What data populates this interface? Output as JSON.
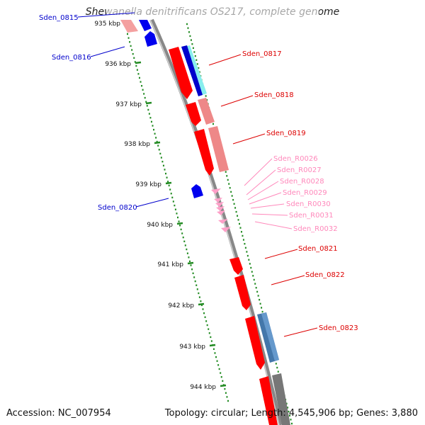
{
  "title": "Shewanella denitrificans OS217, complete genome",
  "footer": {
    "accession": "Accession: NC_007954",
    "summary": "Topology: circular; Length: 4,545,906 bp; Genes: 3,880"
  },
  "colors": {
    "forward_cds": "#ff0000",
    "forward_rna": "#ff9fc8",
    "reverse_cds": "#0000ee",
    "reverse_label": "#0000cc",
    "forward_label": "#dd0000",
    "rna_label": "#ff88bb",
    "cog_cyan": "#33dddd",
    "cog_steel": "#4477aa",
    "cog_gray": "#777777",
    "cog_pink": "#ee7777",
    "backbone": "#888888",
    "tick": "#228b22"
  },
  "kbp_ticks": [
    "935 kbp",
    "936 kbp",
    "937 kbp",
    "938 kbp",
    "939 kbp",
    "940 kbp",
    "941 kbp",
    "942 kbp",
    "943 kbp",
    "944 kbp"
  ],
  "reverse_genes": [
    "Sden_0815",
    "Sden_0816",
    "Sden_0820"
  ],
  "forward_genes": [
    "Sden_0817",
    "Sden_0818",
    "Sden_0819",
    "Sden_0821",
    "Sden_0822",
    "Sden_0823"
  ],
  "rna_genes": [
    "Sden_R0026",
    "Sden_R0027",
    "Sden_R0028",
    "Sden_R0029",
    "Sden_R0030",
    "Sden_R0031",
    "Sden_R0032"
  ]
}
